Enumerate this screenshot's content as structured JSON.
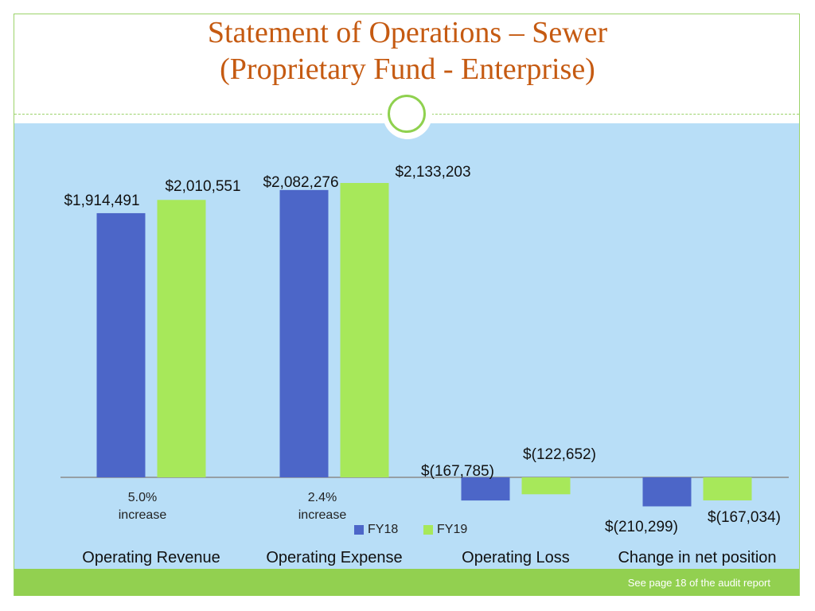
{
  "title_line1": "Statement of Operations – Sewer",
  "title_line2": "(Proprietary Fund - Enterprise)",
  "footer_note": "See page 18 of the audit report",
  "colors": {
    "fy18": "#4c66c8",
    "fy19": "#a7e85a",
    "title": "#c55a11",
    "background": "#b8def7",
    "accent": "#92d050"
  },
  "notes": [
    {
      "category": "Operating Revenue",
      "line1": "5.0%",
      "line2": "increase"
    },
    {
      "category": "Operating Expense",
      "line1": "2.4%",
      "line2": "increase"
    }
  ],
  "chart_data": {
    "type": "bar",
    "categories": [
      "Operating Revenue",
      "Operating Expense",
      "Operating Loss",
      "Change in net position"
    ],
    "series": [
      {
        "name": "FY18",
        "values": [
          1914491,
          2082276,
          -167785,
          -210299
        ],
        "labels": [
          "$1,914,491",
          "$2,082,276",
          "$(167,785)",
          "$(210,299)"
        ]
      },
      {
        "name": "FY19",
        "values": [
          2010551,
          2133203,
          -122652,
          -167034
        ],
        "labels": [
          "$2,010,551",
          "$2,133,203",
          "$(122,652)",
          "$(167,034)"
        ]
      }
    ],
    "legend_position": "bottom",
    "grid": false
  }
}
